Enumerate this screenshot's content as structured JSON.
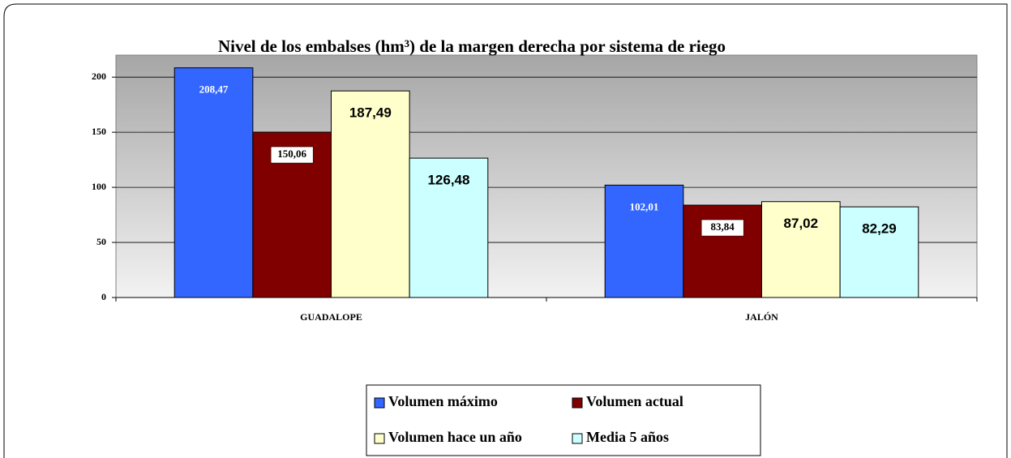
{
  "chart_data": {
    "type": "bar",
    "title": "Nivel de los embalses (hm³) de la margen derecha por sistema de riego",
    "categories": [
      "GUADALOPE",
      "JALÓN"
    ],
    "series": [
      {
        "name": "Volumen máximo",
        "color": "#3366ff",
        "values": [
          208.47,
          102.01
        ],
        "value_labels": [
          "208,47",
          "102,01"
        ]
      },
      {
        "name": "Volumen actual",
        "color": "#800000",
        "values": [
          150.06,
          83.84
        ],
        "value_labels": [
          "150,06",
          "83,84"
        ]
      },
      {
        "name": "Volumen hace un año",
        "color": "#ffffcc",
        "values": [
          187.49,
          87.02
        ],
        "value_labels": [
          "187,49",
          "87,02"
        ]
      },
      {
        "name": "Media 5 años",
        "color": "#ccffff",
        "values": [
          126.48,
          82.29
        ],
        "value_labels": [
          "126,48",
          "82,29"
        ]
      }
    ],
    "ylim": [
      0,
      220
    ],
    "yticks": [
      0,
      50,
      100,
      150,
      200
    ],
    "grid": true,
    "legend": "bottom"
  }
}
